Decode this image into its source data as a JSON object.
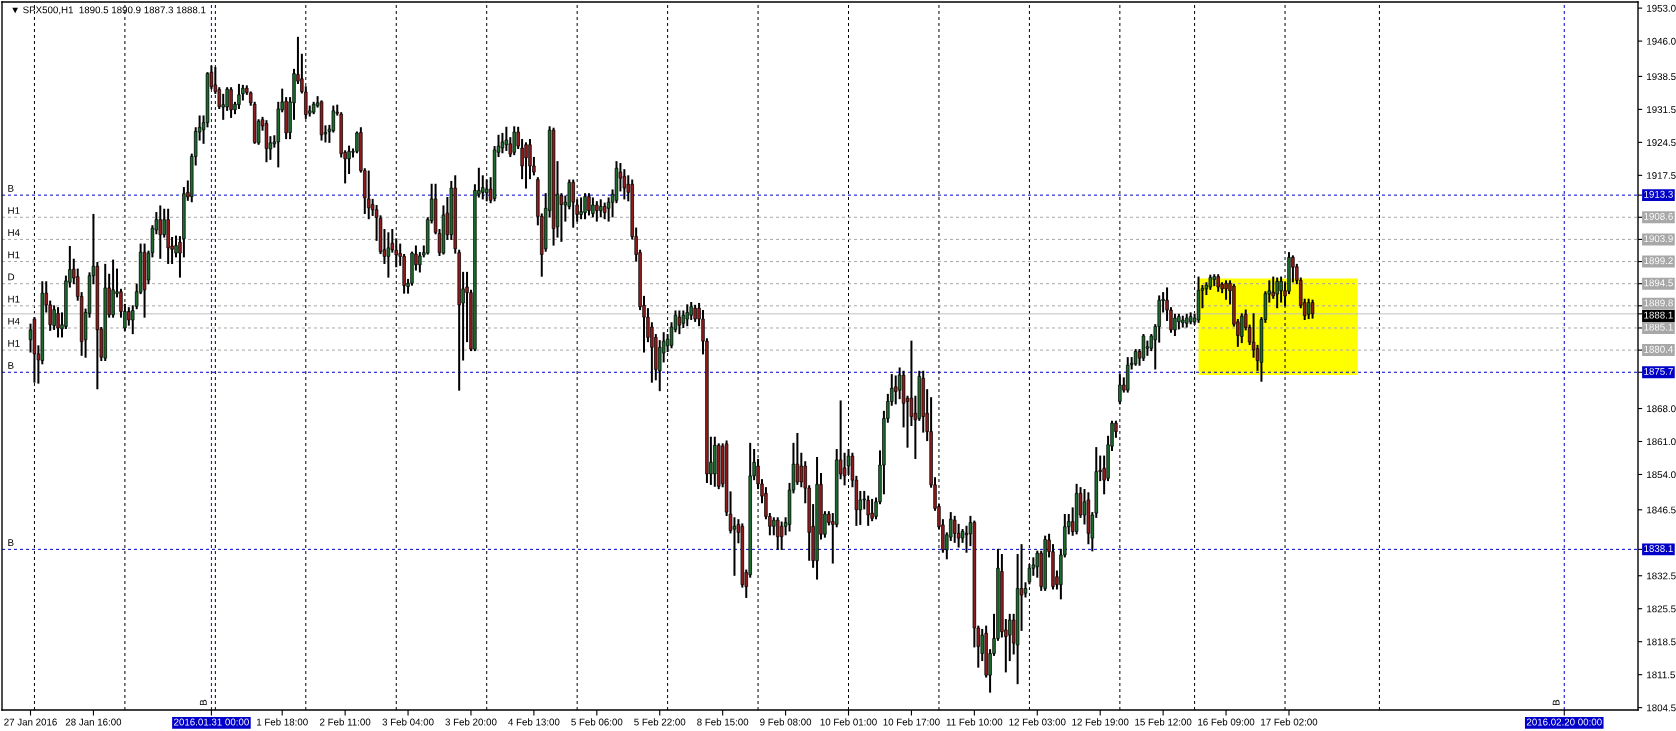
{
  "chart_data": {
    "type": "candlestick",
    "title": "▼ SPX500,H1  1890.5 1890.9 1887.3 1888.1",
    "categories": [
      "27 Jan 2016",
      null,
      null,
      null,
      null,
      null,
      null,
      null,
      null,
      null,
      null,
      null,
      null,
      null,
      null,
      null,
      "28 Jan 16:00",
      null,
      null,
      null,
      null,
      null,
      null,
      null,
      null,
      null,
      null,
      null,
      null,
      null,
      null,
      null,
      null,
      null,
      null,
      null,
      null,
      null,
      null,
      null,
      null,
      null,
      null,
      null,
      null,
      null,
      "2016.01.31 00:00",
      null,
      null,
      null,
      null,
      null,
      null,
      null,
      null,
      null,
      null,
      null,
      null,
      null,
      null,
      null,
      null,
      null,
      "1 Feb 18:00",
      null,
      null,
      null,
      null,
      null,
      null,
      null,
      null,
      null,
      null,
      null,
      null,
      null,
      null,
      null,
      "2 Feb 11:00",
      null,
      null,
      null,
      null,
      null,
      null,
      null,
      null,
      null,
      null,
      null,
      null,
      null,
      null,
      null,
      "3 Feb 04:00",
      null,
      null,
      null,
      null,
      null,
      null,
      null,
      null,
      null,
      null,
      null,
      null,
      null,
      null,
      null,
      "3 Feb 20:00",
      null,
      null,
      null,
      null,
      null,
      null,
      null,
      null,
      null,
      null,
      null,
      null,
      null,
      null,
      null,
      "4 Feb 13:00",
      null,
      null,
      null,
      null,
      null,
      null,
      null,
      null,
      null,
      null,
      null,
      null,
      null,
      null,
      null,
      "5 Feb 06:00",
      null,
      null,
      null,
      null,
      null,
      null,
      null,
      null,
      null,
      null,
      null,
      null,
      null,
      null,
      null,
      "5 Feb 22:00",
      null,
      null,
      null,
      null,
      null,
      null,
      null,
      null,
      null,
      null,
      null,
      null,
      null,
      null,
      null,
      "8 Feb 15:00",
      null,
      null,
      null,
      null,
      null,
      null,
      null,
      null,
      null,
      null,
      null,
      null,
      null,
      null,
      null,
      "9 Feb 08:00",
      null,
      null,
      null,
      null,
      null,
      null,
      null,
      null,
      null,
      null,
      null,
      null,
      null,
      null,
      null,
      "10 Feb 01:00",
      null,
      null,
      null,
      null,
      null,
      null,
      null,
      null,
      null,
      null,
      null,
      null,
      null,
      null,
      null,
      "10 Feb 17:00",
      null,
      null,
      null,
      null,
      null,
      null,
      null,
      null,
      null,
      null,
      null,
      null,
      null,
      null,
      null,
      "11 Feb 10:00",
      null,
      null,
      null,
      null,
      null,
      null,
      null,
      null,
      null,
      null,
      null,
      null,
      null,
      null,
      null,
      "12 Feb 03:00",
      null,
      null,
      null,
      null,
      null,
      null,
      null,
      null,
      null,
      null,
      null,
      null,
      null,
      null,
      null,
      "12 Feb 19:00",
      null,
      null,
      null,
      null,
      null,
      null,
      null,
      null,
      null,
      null,
      null,
      null,
      null,
      null,
      null,
      "15 Feb 12:00",
      null,
      null,
      null,
      null,
      null,
      null,
      null,
      null,
      null,
      null,
      null,
      null,
      null,
      null,
      null,
      "16 Feb 09:00",
      null,
      null,
      null,
      null,
      null,
      null,
      null,
      null,
      null,
      null,
      null,
      null,
      null,
      null,
      null,
      "17 Feb 02:00",
      null,
      null,
      null,
      null,
      null,
      null,
      null,
      null,
      null,
      null,
      null,
      null,
      null,
      null,
      null,
      null,
      null,
      null,
      null,
      null,
      null,
      null,
      null,
      null,
      null,
      null,
      null,
      null,
      null,
      null,
      null,
      null,
      null,
      null,
      null,
      null,
      null,
      null,
      null,
      null,
      null,
      null,
      null,
      null,
      null,
      null,
      null,
      null,
      null,
      null,
      null,
      null,
      null,
      null,
      null,
      null,
      null,
      null,
      null,
      null,
      null,
      null,
      null,
      null,
      null,
      null,
      null,
      null,
      null,
      "2016.02.20 00:00",
      null,
      null,
      null,
      null,
      null,
      null,
      null,
      null,
      null,
      null,
      null,
      null,
      null,
      null,
      null,
      null,
      null,
      null
    ],
    "ohlc": [
      [
        1882.6,
        1885.8,
        1880.1,
        1884.7
      ],
      [
        1887.0,
        1887.2,
        1873.7,
        1879.6
      ],
      [
        1879.6,
        1881.2,
        1873.5,
        1878.3
      ],
      [
        1878.2,
        1894.8,
        1877.6,
        1892.5
      ],
      [
        1892.5,
        1894.8,
        1888.6,
        1890.0
      ],
      [
        1890.0,
        1890.7,
        1884.7,
        1885.8
      ],
      [
        1885.6,
        1889.7,
        1884.9,
        1889.0
      ],
      [
        1888.2,
        1889.3,
        1883.3,
        1885.1
      ],
      [
        1884.9,
        1888.2,
        1883.3,
        1885.8
      ],
      [
        1885.4,
        1896.0,
        1885.1,
        1895.1
      ],
      [
        1894.8,
        1902.3,
        1893.9,
        1897.5
      ],
      [
        1897.6,
        1899.6,
        1894.6,
        1895.7
      ],
      [
        1896.0,
        1897.5,
        1891.1,
        1891.8
      ],
      [
        1891.8,
        1892.5,
        1879.4,
        1882.2
      ],
      [
        1882.6,
        1889.0,
        1879.0,
        1888.4
      ],
      [
        1888.2,
        1896.7,
        1887.5,
        1896.2
      ],
      [
        1896.2,
        1909.1,
        1894.6,
        1898.2
      ],
      [
        1898.2,
        1898.9,
        1872.3,
        1884.7
      ],
      [
        1884.9,
        1885.1,
        1878.3,
        1878.9
      ],
      [
        1878.7,
        1898.5,
        1878.3,
        1893.6
      ],
      [
        1893.6,
        1896.4,
        1887.5,
        1887.9
      ],
      [
        1887.9,
        1899.4,
        1887.5,
        1893.2
      ],
      [
        1892.4,
        1897.5,
        1891.8,
        1892.8
      ],
      [
        1892.8,
        1893.2,
        1887.5,
        1888.6
      ],
      [
        1885.1,
        1890.0,
        1884.7,
        1888.6
      ],
      [
        1888.6,
        1889.3,
        1885.8,
        1886.8
      ],
      [
        1886.8,
        1889.7,
        1884.0,
        1888.8
      ],
      [
        1889.7,
        1894.3,
        1889.3,
        1892.8
      ],
      [
        1892.7,
        1902.8,
        1892.5,
        1901.2
      ],
      [
        1901.2,
        1902.8,
        1887.5,
        1893.2
      ],
      [
        1895.3,
        1901.3,
        1894.6,
        1901.0
      ],
      [
        1901.1,
        1906.7,
        1900.3,
        1906.3
      ],
      [
        1905.9,
        1909.5,
        1905.2,
        1908.1
      ],
      [
        1908.1,
        1910.9,
        1900.0,
        1904.9
      ],
      [
        1904.9,
        1910.2,
        1904.5,
        1908.1
      ],
      [
        1908.1,
        1910.2,
        1898.9,
        1902.1
      ],
      [
        1902.5,
        1904.2,
        1898.9,
        1901.8
      ],
      [
        1901.0,
        1904.5,
        1900.3,
        1902.6
      ],
      [
        1903.3,
        1904.4,
        1896.0,
        1901.0
      ],
      [
        1904.0,
        1914.8,
        1900.3,
        1913.6
      ],
      [
        1913.9,
        1916.2,
        1912.3,
        1912.9
      ],
      [
        1913.0,
        1921.9,
        1912.0,
        1921.5
      ],
      [
        1921.5,
        1927.5,
        1919.8,
        1926.8
      ],
      [
        1926.7,
        1930.0,
        1925.1,
        1927.7
      ],
      [
        1927.2,
        1930.0,
        1924.4,
        1928.7
      ],
      [
        1928.7,
        1939.2,
        1927.9,
        1939.1
      ],
      [
        1939.4,
        1940.6,
        1936.0,
        1936.3
      ],
      [
        1936.7,
        1940.3,
        1935.0,
        1935.3
      ],
      [
        1935.7,
        1936.0,
        1931.8,
        1932.1
      ],
      [
        1932.0,
        1934.6,
        1929.5,
        1932.5
      ],
      [
        1932.0,
        1936.0,
        1931.4,
        1935.8
      ],
      [
        1935.7,
        1936.0,
        1929.9,
        1931.4
      ],
      [
        1931.4,
        1932.9,
        1930.7,
        1932.6
      ],
      [
        1932.5,
        1936.7,
        1931.8,
        1934.6
      ],
      [
        1934.8,
        1936.5,
        1933.6,
        1936.0
      ],
      [
        1936.0,
        1936.4,
        1934.8,
        1935.1
      ],
      [
        1935.0,
        1935.1,
        1932.5,
        1932.9
      ],
      [
        1932.6,
        1932.9,
        1924.4,
        1924.5
      ],
      [
        1924.4,
        1929.2,
        1924.2,
        1929.0
      ],
      [
        1929.3,
        1929.7,
        1927.2,
        1928.0
      ],
      [
        1928.5,
        1929.0,
        1920.5,
        1923.2
      ],
      [
        1923.1,
        1925.6,
        1921.0,
        1924.4
      ],
      [
        1924.2,
        1925.8,
        1923.6,
        1924.6
      ],
      [
        1924.6,
        1932.9,
        1919.4,
        1931.6
      ],
      [
        1931.4,
        1935.7,
        1931.1,
        1933.1
      ],
      [
        1933.2,
        1933.9,
        1925.4,
        1926.5
      ],
      [
        1926.6,
        1933.9,
        1925.4,
        1933.1
      ],
      [
        1932.9,
        1939.9,
        1929.5,
        1939.1
      ],
      [
        1938.9,
        1946.7,
        1937.1,
        1937.5
      ],
      [
        1938.0,
        1943.1,
        1935.1,
        1935.3
      ],
      [
        1935.2,
        1936.2,
        1929.7,
        1930.4
      ],
      [
        1930.7,
        1932.1,
        1930.2,
        1931.2
      ],
      [
        1930.9,
        1932.9,
        1930.7,
        1932.6
      ],
      [
        1932.3,
        1934.1,
        1932.1,
        1932.9
      ],
      [
        1933.1,
        1933.2,
        1925.1,
        1926.1
      ],
      [
        1926.3,
        1927.9,
        1924.7,
        1926.6
      ],
      [
        1926.8,
        1928.0,
        1924.6,
        1927.3
      ],
      [
        1927.0,
        1932.1,
        1926.8,
        1931.2
      ],
      [
        1930.9,
        1932.3,
        1930.4,
        1930.7
      ],
      [
        1930.5,
        1930.7,
        1921.5,
        1922.1
      ],
      [
        1922.4,
        1922.6,
        1916.0,
        1921.0
      ],
      [
        1921.0,
        1923.6,
        1918.0,
        1922.6
      ],
      [
        1922.4,
        1923.0,
        1921.5,
        1922.6
      ],
      [
        1922.6,
        1926.6,
        1922.4,
        1926.5
      ],
      [
        1926.6,
        1927.5,
        1918.3,
        1918.5
      ],
      [
        1918.5,
        1918.8,
        1909.5,
        1912.7
      ],
      [
        1912.5,
        1918.3,
        1908.4,
        1910.6
      ],
      [
        1911.3,
        1912.3,
        1909.1,
        1910.2
      ],
      [
        1910.2,
        1911.0,
        1903.8,
        1908.6
      ],
      [
        1908.4,
        1908.8,
        1901.0,
        1901.3
      ],
      [
        1901.7,
        1905.9,
        1898.9,
        1900.3
      ],
      [
        1900.3,
        1905.2,
        1896.0,
        1902.1
      ],
      [
        1903.1,
        1905.9,
        1901.3,
        1901.7
      ],
      [
        1901.6,
        1903.9,
        1898.2,
        1900.6
      ],
      [
        1900.9,
        1902.8,
        1898.5,
        1900.3
      ],
      [
        1900.3,
        1900.6,
        1892.6,
        1894.1
      ],
      [
        1893.9,
        1895.3,
        1892.6,
        1894.6
      ],
      [
        1894.6,
        1901.1,
        1894.3,
        1901.0
      ],
      [
        1900.8,
        1902.4,
        1897.5,
        1898.5
      ],
      [
        1898.5,
        1901.0,
        1897.1,
        1900.4
      ],
      [
        1900.6,
        1902.4,
        1900.3,
        1901.1
      ],
      [
        1901.0,
        1908.4,
        1900.9,
        1908.1
      ],
      [
        1907.9,
        1915.5,
        1907.5,
        1912.5
      ],
      [
        1912.5,
        1915.5,
        1905.2,
        1905.4
      ],
      [
        1905.2,
        1905.9,
        1900.6,
        1901.1
      ],
      [
        1901.0,
        1910.9,
        1900.9,
        1909.1
      ],
      [
        1909.5,
        1912.7,
        1904.0,
        1904.9
      ],
      [
        1904.9,
        1916.1,
        1904.0,
        1914.8
      ],
      [
        1914.8,
        1917.3,
        1901.1,
        1901.9
      ],
      [
        1901.1,
        1901.5,
        1872.0,
        1890.0
      ],
      [
        1890.4,
        1896.8,
        1878.4,
        1893.4
      ],
      [
        1893.8,
        1896.8,
        1882.3,
        1892.6
      ],
      [
        1892.6,
        1893.0,
        1880.4,
        1880.6
      ],
      [
        1880.6,
        1915.4,
        1880.4,
        1914.3
      ],
      [
        1913.5,
        1918.9,
        1913.0,
        1914.3
      ],
      [
        1913.9,
        1917.3,
        1912.6,
        1914.9
      ],
      [
        1913.8,
        1916.4,
        1912.2,
        1914.6
      ],
      [
        1914.6,
        1916.9,
        1911.8,
        1912.2
      ],
      [
        1912.6,
        1923.5,
        1912.2,
        1922.9
      ],
      [
        1922.4,
        1925.9,
        1921.6,
        1923.7
      ],
      [
        1923.3,
        1926.3,
        1922.4,
        1924.6
      ],
      [
        1924.0,
        1927.6,
        1922.9,
        1925.0
      ],
      [
        1924.2,
        1925.4,
        1921.6,
        1922.0
      ],
      [
        1922.4,
        1927.7,
        1922.0,
        1926.7
      ],
      [
        1926.7,
        1927.6,
        1923.3,
        1923.7
      ],
      [
        1923.3,
        1925.0,
        1916.9,
        1919.5
      ],
      [
        1924.0,
        1924.3,
        1914.9,
        1921.2
      ],
      [
        1924.0,
        1925.0,
        1916.9,
        1919.5
      ],
      [
        1919.5,
        1921.2,
        1917.7,
        1918.2
      ],
      [
        1916.6,
        1916.9,
        1907.1,
        1908.8
      ],
      [
        1908.8,
        1909.2,
        1896.2,
        1900.7
      ],
      [
        1901.9,
        1913.5,
        1901.5,
        1910.5
      ],
      [
        1910.0,
        1927.7,
        1908.8,
        1927.1
      ],
      [
        1927.1,
        1927.4,
        1902.8,
        1906.2
      ],
      [
        1906.6,
        1920.3,
        1904.5,
        1913.5
      ],
      [
        1913.2,
        1913.5,
        1903.6,
        1911.3
      ],
      [
        1911.2,
        1913.0,
        1907.9,
        1911.8
      ],
      [
        1910.9,
        1916.4,
        1910.5,
        1916.0
      ],
      [
        1916.0,
        1916.4,
        1906.6,
        1911.8
      ],
      [
        1911.2,
        1912.2,
        1907.9,
        1909.2
      ],
      [
        1909.2,
        1912.6,
        1908.4,
        1909.8
      ],
      [
        1909.6,
        1913.5,
        1908.4,
        1913.0
      ],
      [
        1913.0,
        1913.5,
        1909.2,
        1910.0
      ],
      [
        1909.4,
        1912.6,
        1908.8,
        1911.2
      ],
      [
        1911.2,
        1911.8,
        1907.9,
        1910.0
      ],
      [
        1910.0,
        1912.2,
        1908.8,
        1910.9
      ],
      [
        1910.9,
        1911.5,
        1908.4,
        1909.6
      ],
      [
        1910.5,
        1912.6,
        1907.9,
        1911.8
      ],
      [
        1911.8,
        1914.3,
        1908.8,
        1913.5
      ],
      [
        1912.2,
        1920.3,
        1911.8,
        1919.0
      ],
      [
        1918.2,
        1919.9,
        1914.3,
        1916.9
      ],
      [
        1917.3,
        1918.6,
        1912.6,
        1914.8
      ],
      [
        1915.6,
        1917.3,
        1912.2,
        1913.9
      ],
      [
        1915.6,
        1916.4,
        1904.1,
        1904.5
      ],
      [
        1904.5,
        1906.2,
        1899.4,
        1900.7
      ],
      [
        1901.1,
        1901.5,
        1889.1,
        1889.6
      ],
      [
        1889.9,
        1891.7,
        1880.1,
        1887.4
      ],
      [
        1887.4,
        1889.1,
        1882.3,
        1883.1
      ],
      [
        1885.3,
        1886.1,
        1873.7,
        1881.0
      ],
      [
        1883.1,
        1883.6,
        1874.2,
        1876.3
      ],
      [
        1876.0,
        1882.3,
        1871.9,
        1881.0
      ],
      [
        1879.8,
        1884.0,
        1878.0,
        1882.3
      ],
      [
        1881.3,
        1883.6,
        1880.2,
        1882.7
      ],
      [
        1881.4,
        1886.1,
        1881.0,
        1885.3
      ],
      [
        1884.8,
        1888.6,
        1884.4,
        1887.8
      ],
      [
        1887.4,
        1888.6,
        1884.0,
        1885.7
      ],
      [
        1886.1,
        1888.6,
        1885.3,
        1887.8
      ],
      [
        1887.0,
        1889.9,
        1885.7,
        1888.4
      ],
      [
        1887.8,
        1890.4,
        1887.0,
        1889.6
      ],
      [
        1889.3,
        1889.8,
        1886.6,
        1887.0
      ],
      [
        1889.3,
        1890.2,
        1885.7,
        1887.0
      ],
      [
        1887.0,
        1888.7,
        1879.7,
        1882.3
      ],
      [
        1882.3,
        1882.7,
        1852.4,
        1854.1
      ],
      [
        1854.1,
        1861.8,
        1852.0,
        1856.6
      ],
      [
        1854.1,
        1861.8,
        1851.6,
        1860.2
      ],
      [
        1860.2,
        1860.4,
        1851.1,
        1851.5
      ],
      [
        1860.0,
        1860.4,
        1851.5,
        1852.0
      ],
      [
        1860.5,
        1861.0,
        1845.4,
        1846.0
      ],
      [
        1845.6,
        1850.2,
        1841.7,
        1842.1
      ],
      [
        1842.4,
        1844.7,
        1832.7,
        1843.0
      ],
      [
        1843.4,
        1844.3,
        1839.6,
        1841.7
      ],
      [
        1843.0,
        1843.4,
        1830.2,
        1830.6
      ],
      [
        1833.2,
        1833.6,
        1828.0,
        1830.2
      ],
      [
        1832.7,
        1860.5,
        1832.3,
        1853.7
      ],
      [
        1853.7,
        1859.2,
        1853.0,
        1856.6
      ],
      [
        1855.8,
        1857.1,
        1851.1,
        1852.0
      ],
      [
        1852.0,
        1852.8,
        1848.1,
        1849.4
      ],
      [
        1850.0,
        1851.1,
        1844.7,
        1845.1
      ],
      [
        1845.1,
        1845.6,
        1841.3,
        1843.0
      ],
      [
        1843.0,
        1844.7,
        1841.3,
        1844.3
      ],
      [
        1844.3,
        1844.7,
        1838.2,
        1840.8
      ],
      [
        1843.0,
        1843.8,
        1838.2,
        1840.8
      ],
      [
        1843.0,
        1844.7,
        1841.3,
        1843.8
      ],
      [
        1843.4,
        1852.0,
        1842.1,
        1850.7
      ],
      [
        1850.7,
        1860.5,
        1850.2,
        1856.2
      ],
      [
        1856.2,
        1862.6,
        1852.0,
        1852.4
      ],
      [
        1855.8,
        1858.4,
        1851.5,
        1852.4
      ],
      [
        1855.8,
        1856.6,
        1848.1,
        1851.1
      ],
      [
        1851.1,
        1851.5,
        1835.9,
        1841.7
      ],
      [
        1843.0,
        1847.5,
        1834.4,
        1835.7
      ],
      [
        1835.7,
        1857.5,
        1831.9,
        1851.9
      ],
      [
        1851.9,
        1854.1,
        1840.4,
        1841.3
      ],
      [
        1841.3,
        1846.0,
        1840.8,
        1845.6
      ],
      [
        1845.6,
        1846.0,
        1843.4,
        1843.8
      ],
      [
        1844.0,
        1845.6,
        1835.3,
        1843.4
      ],
      [
        1843.4,
        1859.2,
        1843.0,
        1857.1
      ],
      [
        1857.1,
        1869.5,
        1853.2,
        1854.1
      ],
      [
        1855.4,
        1858.4,
        1851.9,
        1853.7
      ],
      [
        1855.8,
        1859.2,
        1854.1,
        1857.9
      ],
      [
        1857.9,
        1858.4,
        1851.5,
        1852.8
      ],
      [
        1852.8,
        1853.5,
        1843.3,
        1846.5
      ],
      [
        1846.5,
        1850.3,
        1843.5,
        1848.6
      ],
      [
        1848.6,
        1850.3,
        1846.8,
        1848.8
      ],
      [
        1848.5,
        1849.3,
        1843.3,
        1845.4
      ],
      [
        1845.8,
        1848.6,
        1844.3,
        1844.7
      ],
      [
        1845.1,
        1848.9,
        1844.7,
        1848.2
      ],
      [
        1848.2,
        1858.9,
        1847.9,
        1856.0
      ],
      [
        1856.0,
        1867.3,
        1850.0,
        1865.9
      ],
      [
        1865.9,
        1870.9,
        1865.2,
        1869.5
      ],
      [
        1869.5,
        1875.1,
        1868.8,
        1872.3
      ],
      [
        1872.6,
        1874.8,
        1869.1,
        1871.6
      ],
      [
        1871.9,
        1876.5,
        1870.2,
        1875.1
      ],
      [
        1875.1,
        1875.8,
        1864.2,
        1869.1
      ],
      [
        1870.2,
        1870.5,
        1859.9,
        1869.5
      ],
      [
        1870.2,
        1882.2,
        1864.5,
        1866.3
      ],
      [
        1867.0,
        1870.5,
        1857.5,
        1865.6
      ],
      [
        1865.9,
        1875.8,
        1865.6,
        1874.8
      ],
      [
        1874.4,
        1875.8,
        1863.1,
        1866.3
      ],
      [
        1867.0,
        1871.9,
        1861.3,
        1863.1
      ],
      [
        1863.1,
        1870.2,
        1851.4,
        1851.8
      ],
      [
        1851.8,
        1853.2,
        1846.5,
        1846.8
      ],
      [
        1847.2,
        1847.5,
        1842.6,
        1842.9
      ],
      [
        1843.3,
        1844.3,
        1837.6,
        1838.0
      ],
      [
        1838.0,
        1841.5,
        1836.2,
        1841.2
      ],
      [
        1840.7,
        1845.8,
        1840.1,
        1844.5
      ],
      [
        1844.3,
        1845.0,
        1839.7,
        1841.5
      ],
      [
        1841.5,
        1843.3,
        1838.7,
        1840.5
      ],
      [
        1840.5,
        1842.2,
        1839.7,
        1841.9
      ],
      [
        1841.5,
        1842.9,
        1837.6,
        1841.2
      ],
      [
        1841.4,
        1845.0,
        1839.0,
        1843.8
      ],
      [
        1843.8,
        1844.0,
        1817.5,
        1821.4
      ],
      [
        1821.4,
        1821.7,
        1813.2,
        1817.5
      ],
      [
        1816.0,
        1821.0,
        1814.6,
        1819.9
      ],
      [
        1820.3,
        1821.7,
        1811.1,
        1811.4
      ],
      [
        1811.4,
        1816.7,
        1807.9,
        1816.0
      ],
      [
        1816.0,
        1824.2,
        1815.7,
        1819.2
      ],
      [
        1819.2,
        1838.0,
        1818.9,
        1834.1
      ],
      [
        1833.4,
        1836.9,
        1819.6,
        1820.6
      ],
      [
        1821.0,
        1823.1,
        1812.2,
        1819.6
      ],
      [
        1819.9,
        1824.2,
        1814.6,
        1823.1
      ],
      [
        1823.1,
        1824.2,
        1816.0,
        1818.2
      ],
      [
        1817.8,
        1836.9,
        1809.7,
        1829.8
      ],
      [
        1829.8,
        1839.0,
        1821.0,
        1828.4
      ],
      [
        1828.8,
        1830.9,
        1828.1,
        1829.8
      ],
      [
        1831.2,
        1834.8,
        1830.9,
        1834.1
      ],
      [
        1834.1,
        1836.2,
        1832.7,
        1834.8
      ],
      [
        1834.4,
        1837.6,
        1832.3,
        1837.3
      ],
      [
        1837.3,
        1837.6,
        1829.5,
        1830.2
      ],
      [
        1829.8,
        1840.8,
        1829.5,
        1840.2
      ],
      [
        1840.1,
        1841.2,
        1836.6,
        1837.6
      ],
      [
        1837.6,
        1839.0,
        1829.8,
        1830.2
      ],
      [
        1832.3,
        1833.4,
        1829.8,
        1830.6
      ],
      [
        1830.6,
        1838.0,
        1827.7,
        1836.9
      ],
      [
        1836.9,
        1845.4,
        1836.6,
        1842.9
      ],
      [
        1842.9,
        1845.4,
        1841.5,
        1844.0
      ],
      [
        1844.0,
        1846.8,
        1841.2,
        1841.9
      ],
      [
        1841.9,
        1851.8,
        1841.5,
        1850.0
      ],
      [
        1850.0,
        1851.1,
        1845.0,
        1845.4
      ],
      [
        1845.4,
        1850.7,
        1843.6,
        1848.2
      ],
      [
        1848.6,
        1850.0,
        1839.4,
        1841.5
      ],
      [
        1840.5,
        1845.8,
        1837.9,
        1845.4
      ],
      [
        1845.8,
        1859.6,
        1845.0,
        1854.6
      ],
      [
        1854.9,
        1857.8,
        1852.8,
        1854.6
      ],
      [
        1855.3,
        1857.8,
        1850.0,
        1852.8
      ],
      [
        1853.2,
        1862.0,
        1852.8,
        1860.3
      ],
      [
        1860.0,
        1865.2,
        1859.2,
        1864.9
      ],
      [
        1864.9,
        1865.2,
        1862.0,
        1863.1
      ],
      [
        1869.5,
        1875.1,
        1869.1,
        1873.0
      ],
      [
        1873.0,
        1874.4,
        1871.6,
        1871.9
      ],
      [
        1871.9,
        1878.7,
        1871.6,
        1877.2
      ],
      [
        1877.3,
        1878.7,
        1876.5,
        1877.6
      ],
      [
        1877.5,
        1880.4,
        1877.3,
        1880.1
      ],
      [
        1880.1,
        1880.4,
        1877.3,
        1878.7
      ],
      [
        1878.7,
        1883.6,
        1878.3,
        1883.4
      ],
      [
        1880.8,
        1882.2,
        1879.4,
        1881.1
      ],
      [
        1880.8,
        1883.6,
        1880.4,
        1883.4
      ],
      [
        1882.6,
        1885.7,
        1876.5,
        1885.4
      ],
      [
        1885.4,
        1891.8,
        1882.2,
        1891.0
      ],
      [
        1890.9,
        1892.5,
        1888.6,
        1891.2
      ],
      [
        1891.0,
        1893.5,
        1886.8,
        1888.9
      ],
      [
        1888.9,
        1889.3,
        1884.3,
        1884.7
      ],
      [
        1884.7,
        1887.9,
        1883.6,
        1887.2
      ],
      [
        1886.4,
        1887.9,
        1885.0,
        1887.5
      ],
      [
        1886.2,
        1887.5,
        1885.4,
        1886.8
      ],
      [
        1886.1,
        1887.9,
        1885.4,
        1887.2
      ],
      [
        1886.4,
        1888.2,
        1886.1,
        1887.5
      ],
      [
        1886.4,
        1887.9,
        1886.0,
        1887.2
      ],
      [
        1886.8,
        1895.8,
        1886.4,
        1893.1
      ],
      [
        1893.1,
        1894.0,
        1889.5,
        1893.5
      ],
      [
        1893.4,
        1894.6,
        1892.3,
        1894.2
      ],
      [
        1893.8,
        1896.2,
        1893.4,
        1895.8
      ],
      [
        1895.4,
        1896.3,
        1894.2,
        1896.0
      ],
      [
        1896.0,
        1896.3,
        1893.0,
        1893.8
      ],
      [
        1894.4,
        1894.6,
        1892.7,
        1893.4
      ],
      [
        1894.6,
        1895.0,
        1891.3,
        1893.4
      ],
      [
        1894.6,
        1895.0,
        1890.3,
        1893.0
      ],
      [
        1894.0,
        1894.2,
        1885.6,
        1885.9
      ],
      [
        1886.4,
        1886.8,
        1881.3,
        1883.5
      ],
      [
        1883.3,
        1888.0,
        1882.1,
        1887.6
      ],
      [
        1888.0,
        1888.8,
        1884.8,
        1885.2
      ],
      [
        1885.2,
        1885.6,
        1881.7,
        1882.1
      ],
      [
        1882.1,
        1888.0,
        1879.0,
        1880.5
      ],
      [
        1880.7,
        1881.3,
        1876.2,
        1878.2
      ],
      [
        1877.8,
        1887.2,
        1873.9,
        1886.9
      ],
      [
        1886.9,
        1892.7,
        1886.4,
        1892.4
      ],
      [
        1892.3,
        1895.0,
        1890.7,
        1893.0
      ],
      [
        1892.7,
        1895.8,
        1891.5,
        1891.9
      ],
      [
        1892.3,
        1895.6,
        1889.5,
        1895.0
      ],
      [
        1893.0,
        1895.8,
        1890.7,
        1895.0
      ],
      [
        1893.0,
        1894.6,
        1889.9,
        1891.9
      ],
      [
        1892.9,
        1901.0,
        1892.5,
        1900.1
      ],
      [
        1900.1,
        1900.3,
        1895.0,
        1898.0
      ],
      [
        1898.1,
        1898.5,
        1894.6,
        1895.2
      ],
      [
        1895.2,
        1895.6,
        1889.5,
        1889.9
      ],
      [
        1890.5,
        1891.1,
        1887.0,
        1887.7
      ],
      [
        1888.0,
        1891.1,
        1887.2,
        1890.5
      ],
      [
        1890.5,
        1890.9,
        1887.3,
        1888.1
      ],
      null,
      null,
      null,
      null,
      null,
      null,
      null,
      null,
      null,
      null,
      null,
      null,
      null,
      null,
      null,
      null,
      null,
      null,
      null,
      null,
      null,
      null,
      null,
      null,
      null,
      null,
      null,
      null,
      null,
      null,
      null,
      null,
      null,
      null,
      null,
      null,
      null,
      null,
      null,
      null,
      null,
      null,
      null,
      null,
      null,
      null,
      null,
      null,
      null,
      null,
      null,
      null,
      null,
      null,
      null,
      null,
      null,
      null,
      null,
      null,
      null,
      null,
      null,
      null,
      null,
      null,
      null,
      null,
      null,
      null,
      null,
      null,
      null,
      null,
      null,
      null,
      null,
      null,
      null,
      null,
      null,
      null
    ],
    "ylim": [
      1804.0,
      1954.3
    ],
    "yticks": [
      {
        "value": 1953,
        "label": "1953.0"
      },
      {
        "value": 1946,
        "label": "1946.0"
      },
      1938.5,
      1931.5,
      1924.5,
      1917.5,
      1913.3,
      1908.6,
      1903.9,
      1899.2,
      1894.5,
      1889.8,
      1888.1,
      1885.1,
      1880.4,
      1875.7,
      {
        "value": 1868,
        "label": "1868.0"
      },
      {
        "value": 1861,
        "label": "1861.0"
      },
      {
        "value": 1854,
        "label": "1854.0"
      },
      1846.5,
      1838.1,
      1832.5,
      1825.5,
      1818.5,
      1811.5,
      1804.5
    ],
    "bands": [
      {
        "axis": "y",
        "from": 1875.1,
        "to": 1895.6,
        "color": "#ffff00"
      }
    ],
    "ref_lines": [
      {
        "axis": "y",
        "value": 1913.3,
        "label": "B",
        "color": "#0000c8",
        "line_style": "dashed"
      },
      {
        "axis": "y",
        "value": 1908.6,
        "label": "H1",
        "color": "#a8a8a8",
        "line_style": "dashed"
      },
      {
        "axis": "y",
        "value": 1903.9,
        "label": "H4",
        "color": "#a8a8a8",
        "line_style": "dashed"
      },
      {
        "axis": "y",
        "value": 1899.2,
        "label": "H1",
        "color": "#a8a8a8",
        "line_style": "dashed"
      },
      {
        "axis": "y",
        "value": 1894.5,
        "label": "D",
        "color": "#a8a8a8",
        "line_style": "dashed"
      },
      {
        "axis": "y",
        "value": 1889.8,
        "label": "H1",
        "color": "#a8a8a8",
        "line_style": "dashed"
      },
      {
        "axis": "y",
        "value": 1888.1,
        "color": "#c0c0c0",
        "line_style": "solid"
      },
      {
        "axis": "y",
        "value": 1885.1,
        "label": "H4",
        "color": "#a8a8a8",
        "line_style": "dashed"
      },
      {
        "axis": "y",
        "value": 1880.4,
        "label": "H1",
        "color": "#a8a8a8",
        "line_style": "dashed"
      },
      {
        "axis": "y",
        "value": 1875.7,
        "label": "B",
        "color": "#0000c8",
        "line_style": "dashed"
      },
      {
        "axis": "y",
        "value": 1838.1,
        "label": "B",
        "color": "#0000c8",
        "line_style": "dashed"
      }
    ],
    "annotations": [
      "B",
      "B"
    ]
  }
}
